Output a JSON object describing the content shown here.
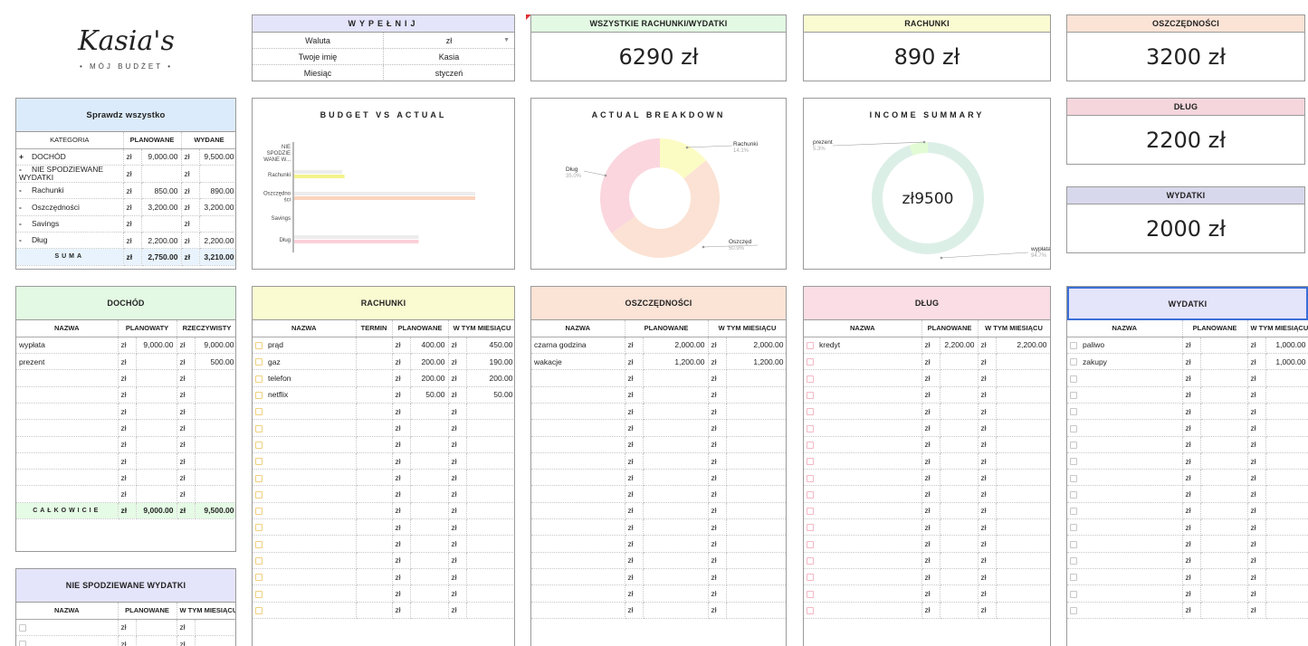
{
  "logo": {
    "title": "Kasia's",
    "subtitle": "• MÓJ BUDŻET •"
  },
  "fill": {
    "title": "WYPEŁNIJ",
    "rows": [
      {
        "label": "Waluta",
        "value": "zł"
      },
      {
        "label": "Twoje imię",
        "value": "Kasia"
      },
      {
        "label": "Miesiąc",
        "value": "styczeń"
      }
    ]
  },
  "cards": {
    "all": {
      "title": "WSZYSTKIE RACHUNKI/WYDATKI",
      "value": "6290 zł",
      "color": "#e3f9e3"
    },
    "bills": {
      "title": "RACHUNKI",
      "value": "890 zł",
      "color": "#fbfbd2"
    },
    "savings": {
      "title": "OSZCZĘDNOŚCI",
      "value": "3200 zł",
      "color": "#fbe3d6"
    },
    "debt": {
      "title": "DŁUG",
      "value": "2200 zł",
      "color": "#f5d6dc"
    },
    "expenses": {
      "title": "WYDATKI",
      "value": "2000 zł",
      "color": "#d8d8ec"
    }
  },
  "check": {
    "title": "Sprawdz wszystko",
    "headers": [
      "KATEGORIA",
      "PLANOWANE",
      "WYDANE"
    ],
    "rows": [
      {
        "sign": "+",
        "name": "DOCHÓD",
        "planned": "9,000.00",
        "spent": "9,500.00"
      },
      {
        "sign": "-",
        "name": "NIE SPODZIEWANE WYDATKI",
        "planned": "",
        "spent": ""
      },
      {
        "sign": "-",
        "name": "Rachunki",
        "planned": "850.00",
        "spent": "890.00"
      },
      {
        "sign": "-",
        "name": "Oszczędności",
        "planned": "3,200.00",
        "spent": "3,200.00"
      },
      {
        "sign": "-",
        "name": "Savings",
        "planned": "",
        "spent": ""
      },
      {
        "sign": "-",
        "name": "Dług",
        "planned": "2,200.00",
        "spent": "2,200.00"
      }
    ],
    "sum": {
      "label": "SUMA",
      "planned": "2,750.00",
      "spent": "3,210.00"
    },
    "currency": "zł"
  },
  "charts": {
    "bva": {
      "title": "BUDGET VS ACTUAL",
      "categories": [
        "NIE SPODZIE WANE W...",
        "Rachunki",
        "Oszczędno ści",
        "Savings",
        "Dług"
      ],
      "budget": [
        0,
        850,
        3200,
        0,
        2200
      ],
      "actual": [
        0,
        890,
        3200,
        0,
        2200
      ],
      "colors": [
        "#fbe0c8",
        "#f3f38a",
        "#fbd4bd",
        "#eeeeee",
        "#fbd0da"
      ]
    },
    "breakdown": {
      "title": "ACTUAL BREAKDOWN",
      "type": "pie",
      "slices": [
        {
          "name": "Rachunki",
          "pct": "14.1%",
          "value": 14.1,
          "color": "#fbfbc4"
        },
        {
          "name": "Oszczęd",
          "pct": "50.9%",
          "value": 50.9,
          "color": "#fbe2d4"
        },
        {
          "name": "Dług",
          "pct": "35.0%",
          "value": 35.0,
          "color": "#fbd6de"
        }
      ]
    },
    "income": {
      "title": "INCOME SUMMARY",
      "type": "pie",
      "center": "zł9500",
      "slices": [
        {
          "name": "wypłata",
          "pct": "94.7%",
          "value": 94.7,
          "color": "#dcefe7"
        },
        {
          "name": "prezent",
          "pct": "5.3%",
          "value": 5.3,
          "color": "#e3fbd5"
        }
      ]
    }
  },
  "income": {
    "title": "DOCHÓD",
    "headers": [
      "NAZWA",
      "PLANOWATY",
      "RZECZYWISTY"
    ],
    "rows": [
      {
        "name": "wypłata",
        "planned": "9,000.00",
        "actual": "9,000.00"
      },
      {
        "name": "prezent",
        "planned": "",
        "actual": "500.00"
      }
    ],
    "total": {
      "label": "CAŁKOWICIE",
      "planned": "9,000.00",
      "actual": "9,500.00"
    },
    "color": "#e3f9e3"
  },
  "unexpected": {
    "title": "NIE SPODZIEWANE WYDATKI",
    "headers": [
      "NAZWA",
      "PLANOWANE",
      "W TYM MIESIĄCU"
    ],
    "color": "#e4e4fb"
  },
  "bills": {
    "title": "RACHUNKI",
    "headers": [
      "NAZWA",
      "TERMIN",
      "PLANOWANE",
      "W TYM MIESIĄCU"
    ],
    "rows": [
      {
        "name": "prąd",
        "planned": "400.00",
        "actual": "450.00"
      },
      {
        "name": "gaz",
        "planned": "200.00",
        "actual": "190.00"
      },
      {
        "name": "telefon",
        "planned": "200.00",
        "actual": "200.00"
      },
      {
        "name": "netflix",
        "planned": "50.00",
        "actual": "50.00"
      }
    ],
    "color": "#fbfbd2"
  },
  "savings": {
    "title": "OSZCZĘDNOŚCI",
    "headers": [
      "NAZWA",
      "PLANOWANE",
      "W TYM MIESIĄCU"
    ],
    "rows": [
      {
        "name": "czarna godzina",
        "planned": "2,000.00",
        "actual": "2,000.00"
      },
      {
        "name": "wakacje",
        "planned": "1,200.00",
        "actual": "1,200.00"
      }
    ],
    "color": "#fbe3d6"
  },
  "debt": {
    "title": "DŁUG",
    "headers": [
      "NAZWA",
      "PLANOWANE",
      "W TYM MIESIĄCU"
    ],
    "rows": [
      {
        "name": "kredyt",
        "planned": "2,200.00",
        "actual": "2,200.00"
      }
    ],
    "color": "#fbdde5"
  },
  "expenses": {
    "title": "WYDATKI",
    "headers": [
      "NAZWA",
      "PLANOWANE",
      "W TYM MIESIĄCU"
    ],
    "rows": [
      {
        "name": "paliwo",
        "planned": "",
        "actual": "1,000.00"
      },
      {
        "name": "zakupy",
        "planned": "",
        "actual": "1,000.00"
      }
    ],
    "color": "#e4e4fb"
  },
  "currency": "zł"
}
